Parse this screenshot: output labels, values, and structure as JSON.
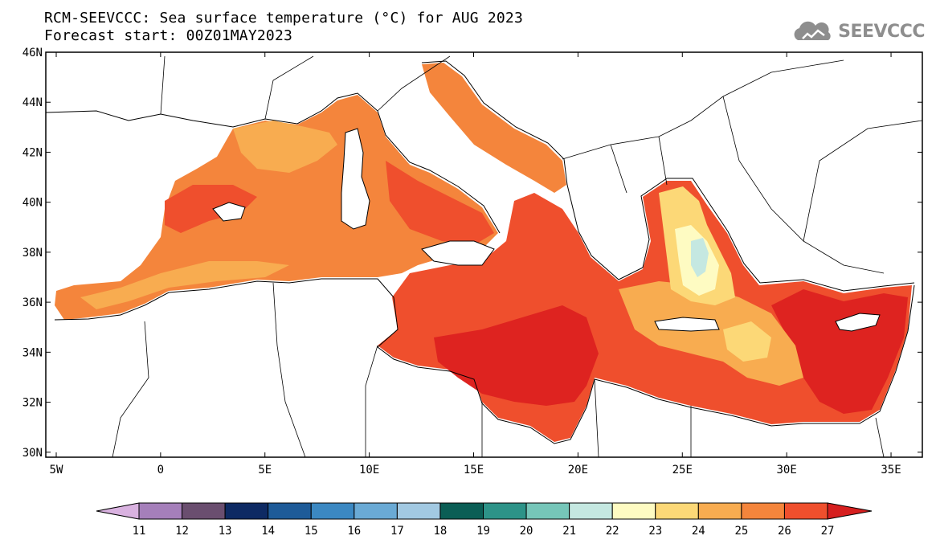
{
  "header": {
    "title_line1": "RCM-SEEVCCC: Sea surface temperature (°C) for AUG 2023",
    "title_line2": "Forecast start: 00Z01MAY2023",
    "logo_text": "SEEVCCC",
    "logo_icon": "cloud-logo-icon"
  },
  "map": {
    "lon_ticks": [
      "5W",
      "0",
      "5E",
      "10E",
      "15E",
      "20E",
      "25E",
      "30E",
      "35E"
    ],
    "lat_ticks": [
      "46N",
      "44N",
      "42N",
      "40N",
      "38N",
      "36N",
      "34N",
      "32N",
      "30N"
    ],
    "lon_range": [
      -5.5,
      36.5
    ],
    "lat_range": [
      29.8,
      46
    ],
    "land_color": "#ffffff",
    "coast_color": "#000000"
  },
  "colorbar": {
    "labels": [
      "11",
      "12",
      "13",
      "14",
      "15",
      "16",
      "17",
      "18",
      "19",
      "20",
      "21",
      "22",
      "23",
      "24",
      "25",
      "26",
      "27"
    ],
    "under_color": "#d9b2e0",
    "over_color": "#d61f1f",
    "colors": [
      "#a57fba",
      "#6a4e6f",
      "#0e2a63",
      "#1e5b98",
      "#3b88c2",
      "#6aaad5",
      "#a2c9e2",
      "#0b5e55",
      "#2d9388",
      "#76c6b9",
      "#c5e8e1",
      "#fefbc2",
      "#fcd877",
      "#f8ac50",
      "#f4853c",
      "#ef4f2d"
    ]
  },
  "sst_colors": {
    "t22": "#c5e8e1",
    "t23": "#fefbc2",
    "t24": "#fcd877",
    "t25": "#f8ac50",
    "t26": "#f4853c",
    "t27": "#ef4f2d",
    "t28": "#de2320"
  }
}
